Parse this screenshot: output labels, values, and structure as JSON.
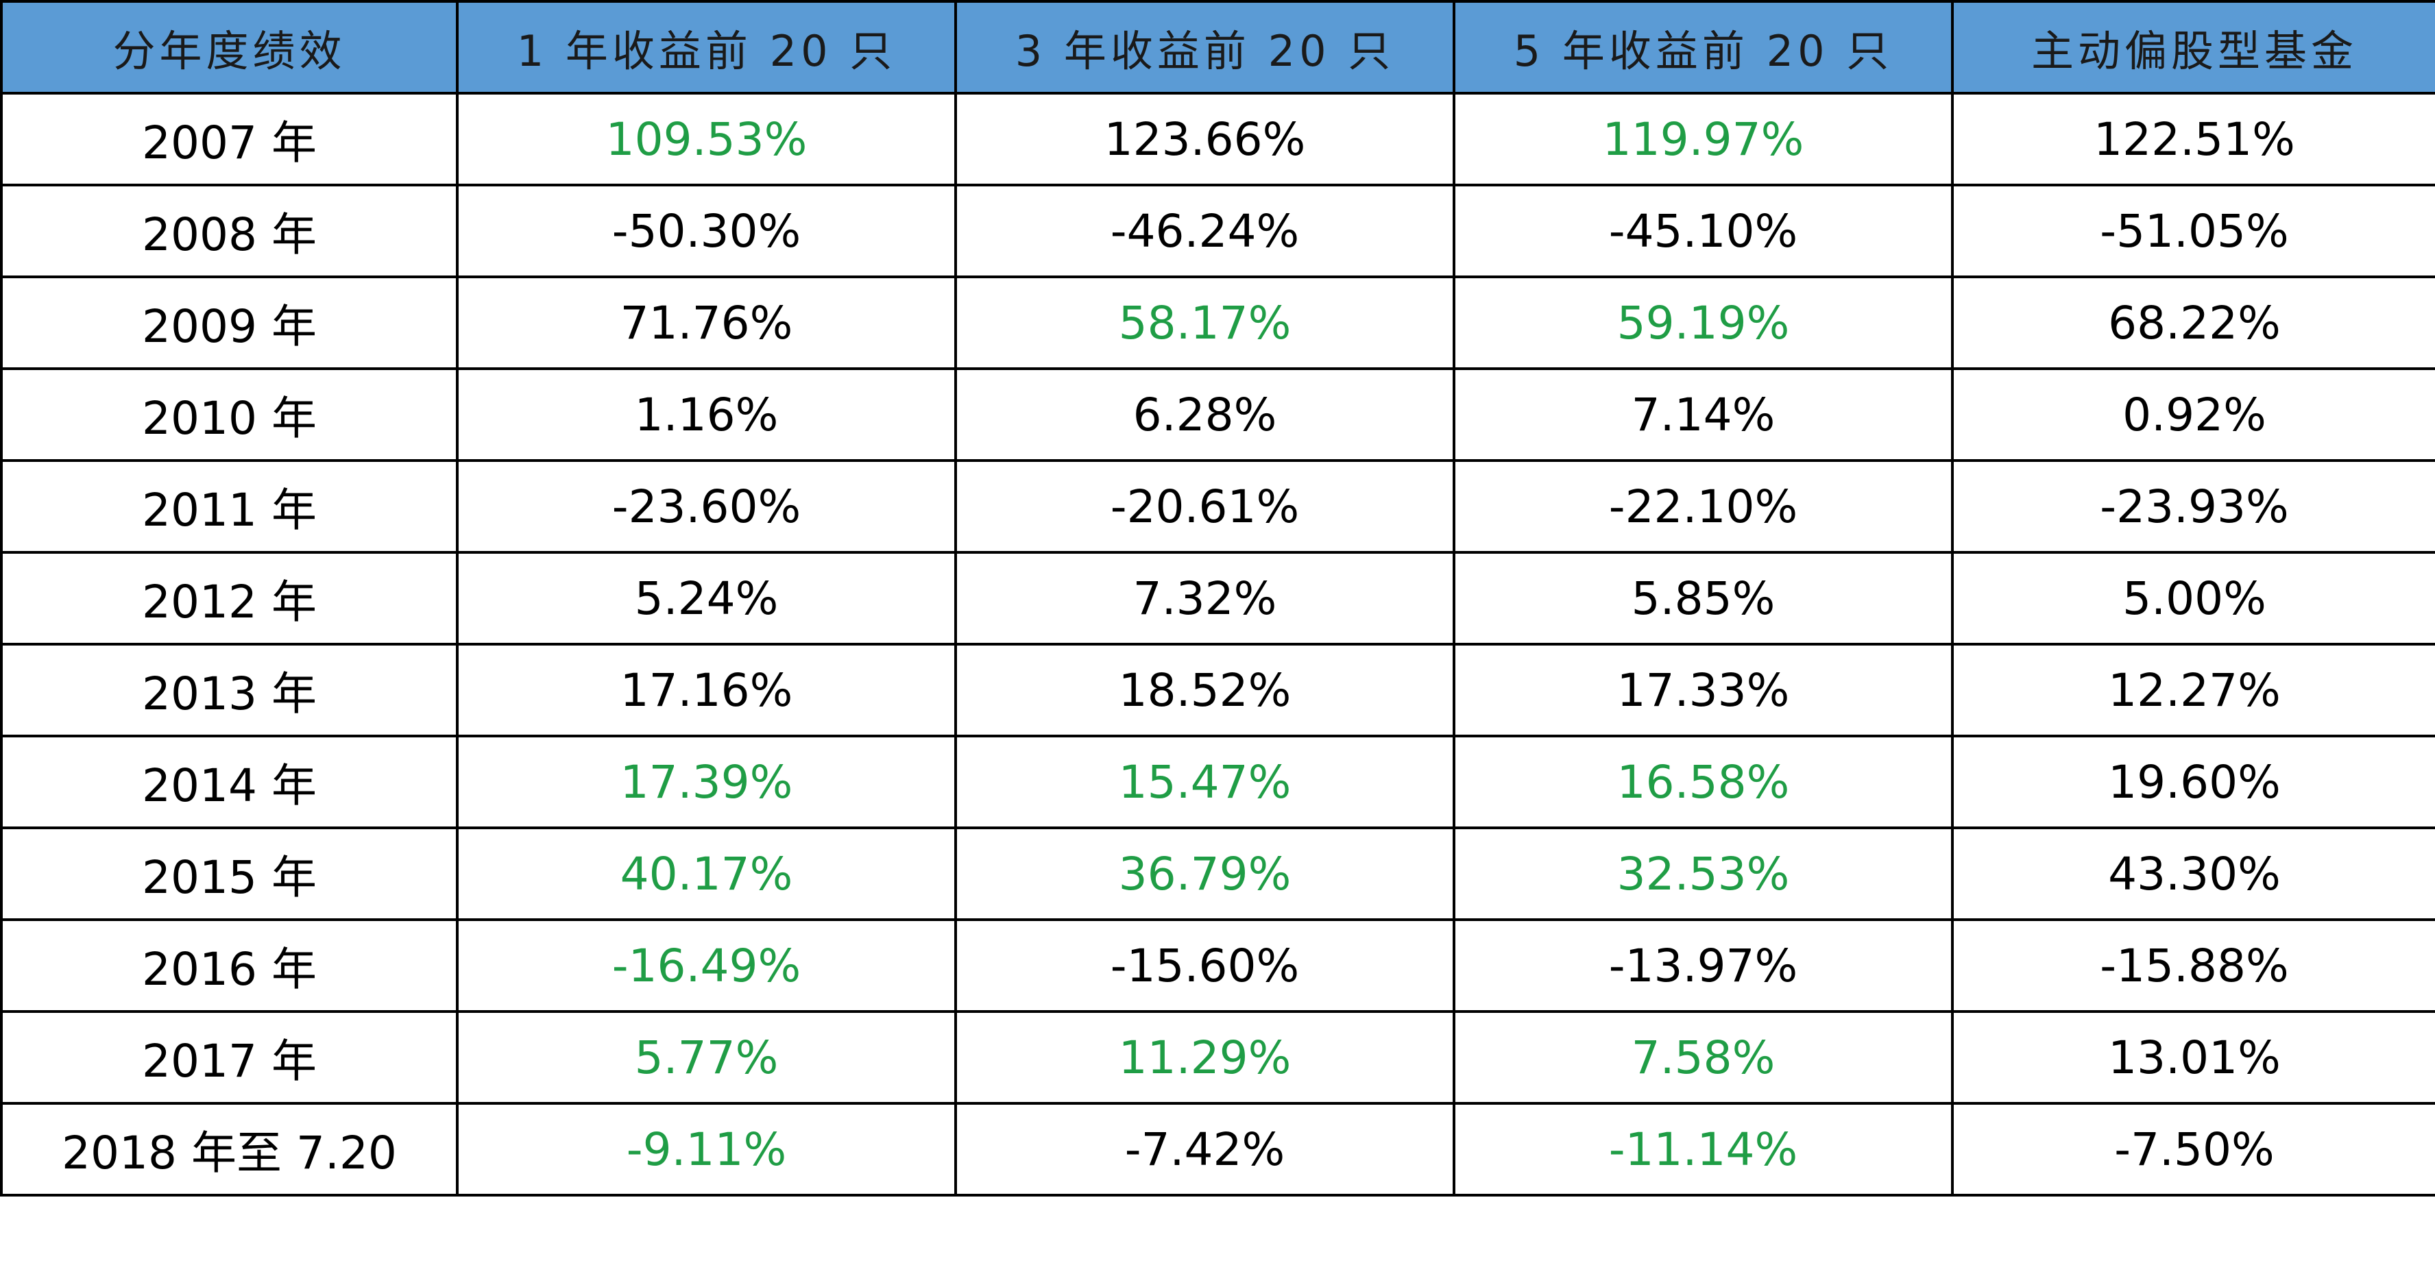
{
  "chart_data": {
    "type": "table",
    "columns": [
      "分年度绩效",
      "1 年收益前 20 只",
      "3 年收益前 20 只",
      "5 年收益前 20 只",
      "主动偏股型基金"
    ],
    "highlight_color": "#1f9d45",
    "header_color": "#5b9bd5",
    "rows": [
      {
        "label": "2007 年",
        "cells": [
          {
            "v": "109.53%",
            "hl": true
          },
          {
            "v": "123.66%",
            "hl": false
          },
          {
            "v": "119.97%",
            "hl": true
          },
          {
            "v": "122.51%",
            "hl": false
          }
        ]
      },
      {
        "label": "2008 年",
        "cells": [
          {
            "v": "-50.30%",
            "hl": false
          },
          {
            "v": "-46.24%",
            "hl": false
          },
          {
            "v": "-45.10%",
            "hl": false
          },
          {
            "v": "-51.05%",
            "hl": false
          }
        ]
      },
      {
        "label": "2009 年",
        "cells": [
          {
            "v": "71.76%",
            "hl": false
          },
          {
            "v": "58.17%",
            "hl": true
          },
          {
            "v": "59.19%",
            "hl": true
          },
          {
            "v": "68.22%",
            "hl": false
          }
        ]
      },
      {
        "label": "2010 年",
        "cells": [
          {
            "v": "1.16%",
            "hl": false
          },
          {
            "v": "6.28%",
            "hl": false
          },
          {
            "v": "7.14%",
            "hl": false
          },
          {
            "v": "0.92%",
            "hl": false
          }
        ]
      },
      {
        "label": "2011 年",
        "cells": [
          {
            "v": "-23.60%",
            "hl": false
          },
          {
            "v": "-20.61%",
            "hl": false
          },
          {
            "v": "-22.10%",
            "hl": false
          },
          {
            "v": "-23.93%",
            "hl": false
          }
        ]
      },
      {
        "label": "2012 年",
        "cells": [
          {
            "v": "5.24%",
            "hl": false
          },
          {
            "v": "7.32%",
            "hl": false
          },
          {
            "v": "5.85%",
            "hl": false
          },
          {
            "v": "5.00%",
            "hl": false
          }
        ]
      },
      {
        "label": "2013 年",
        "cells": [
          {
            "v": "17.16%",
            "hl": false
          },
          {
            "v": "18.52%",
            "hl": false
          },
          {
            "v": "17.33%",
            "hl": false
          },
          {
            "v": "12.27%",
            "hl": false
          }
        ]
      },
      {
        "label": "2014 年",
        "cells": [
          {
            "v": "17.39%",
            "hl": true
          },
          {
            "v": "15.47%",
            "hl": true
          },
          {
            "v": "16.58%",
            "hl": true
          },
          {
            "v": "19.60%",
            "hl": false
          }
        ]
      },
      {
        "label": "2015 年",
        "cells": [
          {
            "v": "40.17%",
            "hl": true
          },
          {
            "v": "36.79%",
            "hl": true
          },
          {
            "v": "32.53%",
            "hl": true
          },
          {
            "v": "43.30%",
            "hl": false
          }
        ]
      },
      {
        "label": "2016 年",
        "cells": [
          {
            "v": "-16.49%",
            "hl": true
          },
          {
            "v": "-15.60%",
            "hl": false
          },
          {
            "v": "-13.97%",
            "hl": false
          },
          {
            "v": "-15.88%",
            "hl": false
          }
        ]
      },
      {
        "label": "2017 年",
        "cells": [
          {
            "v": "5.77%",
            "hl": true
          },
          {
            "v": "11.29%",
            "hl": true
          },
          {
            "v": "7.58%",
            "hl": true
          },
          {
            "v": "13.01%",
            "hl": false
          }
        ]
      },
      {
        "label": "2018 年至 7.20",
        "cells": [
          {
            "v": "-9.11%",
            "hl": true
          },
          {
            "v": "-7.42%",
            "hl": false
          },
          {
            "v": "-11.14%",
            "hl": true
          },
          {
            "v": "-7.50%",
            "hl": false
          }
        ]
      }
    ]
  }
}
